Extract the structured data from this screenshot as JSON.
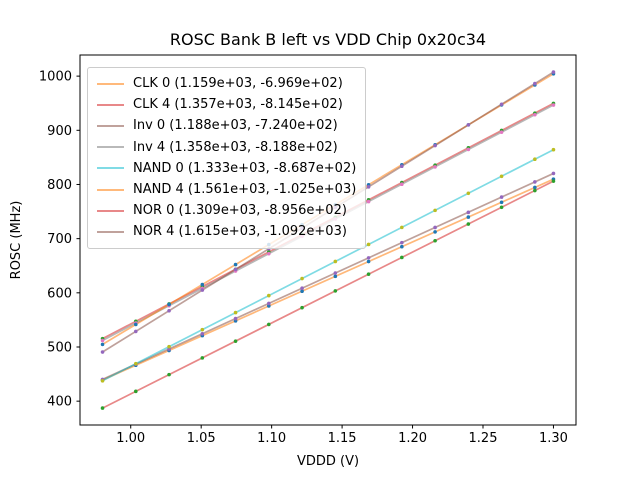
{
  "chart_data": {
    "type": "scatter",
    "title": "ROSC Bank B left vs VDD Chip 0x20c34",
    "xlabel": "VDDD (V)",
    "ylabel": "ROSC (MHz)",
    "grid": false,
    "legend_position": "upper left",
    "xlim": [
      0.964,
      1.316
    ],
    "ylim": [
      356,
      1039
    ],
    "x_ticks": [
      1.0,
      1.05,
      1.1,
      1.15,
      1.2,
      1.25,
      1.3
    ],
    "x_tick_labels": [
      "1.00",
      "1.05",
      "1.10",
      "1.15",
      "1.20",
      "1.25",
      "1.30"
    ],
    "y_ticks": [
      400,
      500,
      600,
      700,
      800,
      900,
      1000
    ],
    "y_tick_labels": [
      "400",
      "500",
      "600",
      "700",
      "800",
      "900",
      "1000"
    ],
    "line_alpha": 0.55,
    "x": [
      0.98,
      1.0036,
      1.0272,
      1.0508,
      1.0744,
      1.098,
      1.1216,
      1.1452,
      1.1688,
      1.1924,
      1.216,
      1.2396,
      1.2632,
      1.2868,
      1.3
    ],
    "series": [
      {
        "name": "CLK 0",
        "legend_label": "CLK 0 (1.159e+03, -6.969e+02)",
        "slope": 1159.0,
        "intercept": -696.9,
        "line_color": "#ff7f0e",
        "marker_color": "#1f77b4",
        "y": [
          438.9,
          466.3,
          493.6,
          521.0,
          548.3,
          575.7,
          603.0,
          630.4,
          657.7,
          685.1,
          712.4,
          739.8,
          767.1,
          794.5,
          809.8
        ]
      },
      {
        "name": "CLK 4",
        "legend_label": "CLK 4 (1.357e+03, -8.145e+02)",
        "slope": 1357.0,
        "intercept": -814.5,
        "line_color": "#d62728",
        "marker_color": "#2ca02c",
        "y": [
          515.4,
          547.4,
          579.4,
          611.4,
          643.5,
          675.5,
          707.5,
          739.5,
          771.6,
          803.6,
          835.6,
          867.6,
          899.7,
          931.7,
          949.6
        ]
      },
      {
        "name": "Inv 0",
        "legend_label": "Inv 0 (1.188e+03, -7.240e+02)",
        "slope": 1188.0,
        "intercept": -724.0,
        "line_color": "#8c564b",
        "marker_color": "#9467bd",
        "y": [
          440.2,
          468.3,
          496.3,
          524.4,
          552.4,
          580.4,
          608.5,
          636.5,
          664.5,
          692.6,
          720.6,
          748.6,
          776.7,
          804.7,
          820.4
        ]
      },
      {
        "name": "Inv 4",
        "legend_label": "Inv 4 (1.358e+03, -8.188e+02)",
        "slope": 1358.0,
        "intercept": -818.8,
        "line_color": "#7f7f7f",
        "marker_color": "#e377c2",
        "y": [
          512.0,
          544.1,
          576.1,
          608.2,
          640.2,
          672.3,
          704.3,
          736.4,
          768.4,
          800.5,
          832.5,
          864.6,
          896.6,
          928.7,
          946.6
        ]
      },
      {
        "name": "NAND 0",
        "legend_label": "NAND 0 (1.333e+03, -8.687e+02)",
        "slope": 1333.0,
        "intercept": -868.7,
        "line_color": "#17becf",
        "marker_color": "#bcbd22",
        "y": [
          437.6,
          469.1,
          500.6,
          532.0,
          563.5,
          594.9,
          626.4,
          657.9,
          689.3,
          720.8,
          752.2,
          783.7,
          815.1,
          846.6,
          864.2
        ]
      },
      {
        "name": "NAND 4",
        "legend_label": "NAND 4 (1.561e+03, -1.025e+03)",
        "slope": 1561.0,
        "intercept": -1025.0,
        "line_color": "#ff7f0e",
        "marker_color": "#1f77b4",
        "y": [
          504.8,
          541.6,
          578.5,
          615.3,
          652.1,
          689.0,
          725.8,
          762.7,
          799.5,
          836.3,
          873.2,
          910.0,
          946.9,
          983.7,
          1004.3
        ]
      },
      {
        "name": "NOR 0",
        "legend_label": "NOR 0 (1.309e+03, -8.956e+02)",
        "slope": 1309.0,
        "intercept": -895.6,
        "line_color": "#d62728",
        "marker_color": "#2ca02c",
        "y": [
          387.2,
          418.1,
          449.0,
          479.9,
          510.8,
          541.7,
          572.6,
          603.5,
          634.4,
          665.3,
          696.1,
          727.0,
          757.9,
          788.8,
          806.1
        ]
      },
      {
        "name": "NOR 4",
        "legend_label": "NOR 4 (1.615e+03, -1.092e+03)",
        "slope": 1615.0,
        "intercept": -1092.0,
        "line_color": "#8c564b",
        "marker_color": "#9467bd",
        "y": [
          490.7,
          528.8,
          566.9,
          605.0,
          643.2,
          681.3,
          719.4,
          757.5,
          795.6,
          833.7,
          871.8,
          910.0,
          948.1,
          986.2,
          1007.5
        ]
      }
    ]
  }
}
